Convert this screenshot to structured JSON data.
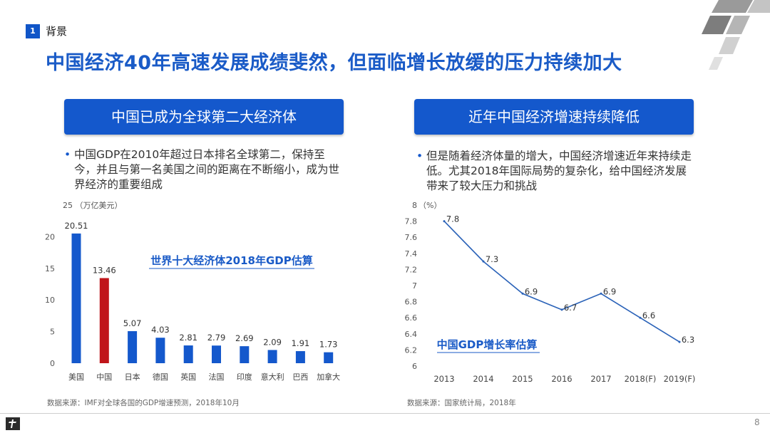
{
  "header": {
    "section_number": "1",
    "section_label": "背景",
    "title": "中国经济40年高速发展成绩斐然，但面临增长放缓的压力持续加大"
  },
  "left_panel": {
    "banner": "中国已成为全球第二大经济体",
    "bullet": "中国GDP在2010年超过日本排名全球第二，保持至今，并且与第一名美国之间的距离在不断缩小，成为世界经济的重要组成",
    "source": "数据来源：IMF对全球各国的GDP增速预测，2018年10月"
  },
  "right_panel": {
    "banner": "近年中国经济增速持续降低",
    "bullet": "但是随着经济体量的增大，中国经济增速近年来持续走低。尤其2018年国际局势的复杂化，给中国经济发展带来了较大压力和挑战",
    "source": "数据来源：国家统计局，2018年"
  },
  "footer": {
    "page_number": "8"
  },
  "colors": {
    "accent": "#1458cc",
    "highlight": "#c0151a",
    "title": "#1a5bc7"
  },
  "chart_data": [
    {
      "type": "bar",
      "title": "世界十大经济体2018年GDP估算",
      "ylabel": "（万亿美元）",
      "categories": [
        "美国",
        "中国",
        "日本",
        "德国",
        "英国",
        "法国",
        "印度",
        "意大利",
        "巴西",
        "加拿大"
      ],
      "values": [
        20.51,
        13.46,
        5.07,
        4.03,
        2.81,
        2.79,
        2.69,
        2.09,
        1.91,
        1.73
      ],
      "value_labels": [
        "20.51",
        "13.46",
        "5.07",
        "4.03",
        "2.81",
        "2.79",
        "2.69",
        "2.09",
        "1.91",
        "1.73"
      ],
      "highlight_category": "中国",
      "ylim": [
        0,
        25
      ],
      "yticks": [
        0,
        5,
        10,
        15,
        20,
        25
      ],
      "ytick_labels": [
        "0",
        "5",
        "10",
        "15",
        "20",
        "25"
      ],
      "grid": false
    },
    {
      "type": "line",
      "title": "中国GDP增长率估算",
      "ylabel": "（%）",
      "x": [
        "2013",
        "2014",
        "2015",
        "2016",
        "2017",
        "2018(F)",
        "2019(F)"
      ],
      "values": [
        7.8,
        7.3,
        6.9,
        6.7,
        6.9,
        6.6,
        6.3
      ],
      "value_labels": [
        "7.8",
        "7.3",
        "6.9",
        "6.7",
        "6.9",
        "6.6",
        "6.3"
      ],
      "ylim": [
        6,
        8
      ],
      "yticks": [
        6,
        6.2,
        6.4,
        6.6,
        6.8,
        7,
        7.2,
        7.4,
        7.6,
        7.8,
        8
      ],
      "ytick_labels": [
        "6",
        "6.2",
        "6.4",
        "6.6",
        "6.8",
        "7",
        "7.2",
        "7.4",
        "7.6",
        "7.8",
        "8"
      ],
      "grid": false
    }
  ]
}
